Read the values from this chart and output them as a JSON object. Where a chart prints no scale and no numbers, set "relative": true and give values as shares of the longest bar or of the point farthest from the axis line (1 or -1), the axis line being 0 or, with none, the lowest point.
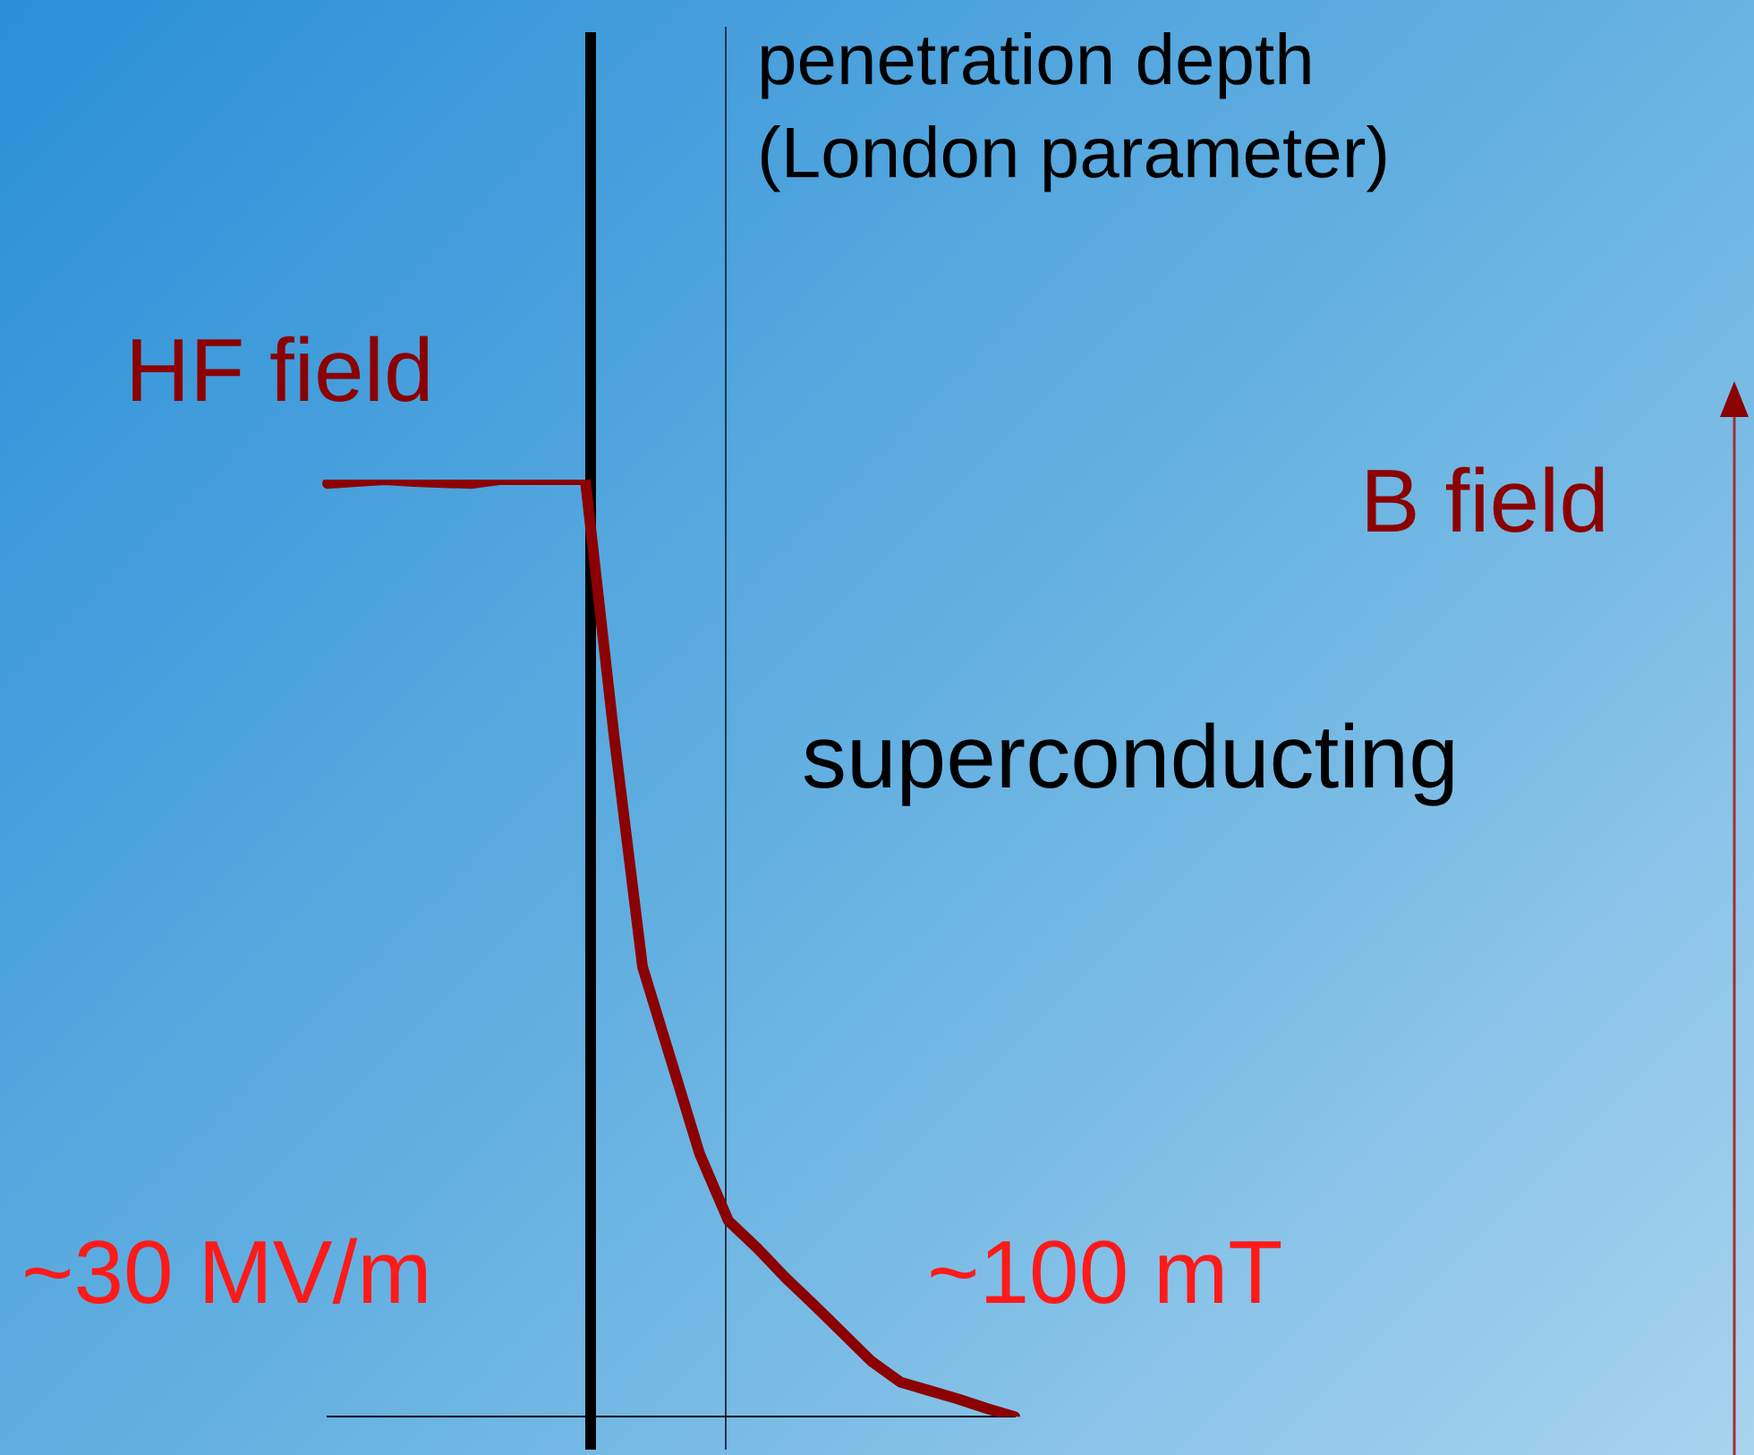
{
  "chart_data": {
    "type": "line",
    "relative": true,
    "categories": [
      null,
      null,
      null,
      null,
      null,
      null,
      null,
      null,
      null,
      null,
      null,
      null,
      null,
      null,
      null,
      null,
      null,
      null,
      null,
      null,
      null,
      null,
      null,
      null,
      null
    ],
    "series": [
      {
        "color": "#8b0000",
        "values": [
          0.996,
          0.998,
          1,
          0.998,
          0.997,
          0.996,
          1,
          1,
          1,
          1,
          0.728,
          0.48,
          0.38,
          0.28,
          0.209,
          0.18,
          0.148,
          0.119,
          0.089,
          0.059,
          0.037,
          0.028,
          0.019,
          0.009,
          0
        ]
      }
    ],
    "annotations": [
      "penetration depth\n(London parameter)",
      "HF field",
      "B field",
      "superconducting",
      "~30 MV/m",
      "~100 mT"
    ],
    "grid": false,
    "legend": false,
    "marker": "none",
    "line_style": "solid"
  }
}
